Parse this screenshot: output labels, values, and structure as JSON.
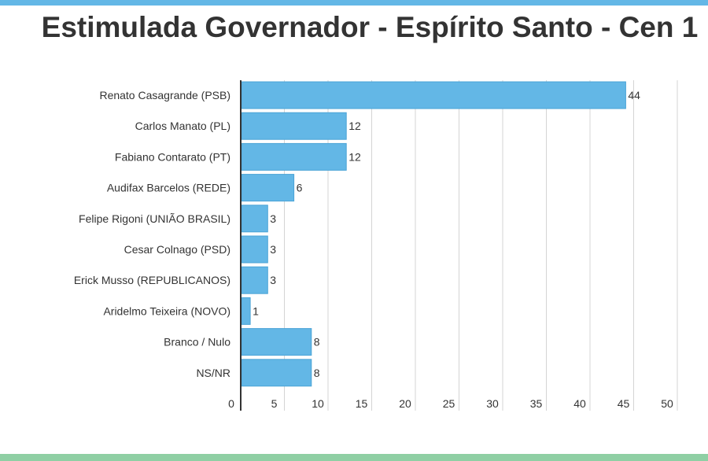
{
  "title": "Estimulada Governador - Espírito Santo - Cen 1",
  "colors": {
    "bar": "#63b7e6",
    "bar_edge": "#4aa3d6",
    "top_strip": "#63b7e6",
    "bottom_strip": "#8fcfa4",
    "grid": "#d4d4d4",
    "axis": "#333333",
    "text": "#333333"
  },
  "chart_data": {
    "type": "bar",
    "orientation": "horizontal",
    "title": "Estimulada Governador - Espírito Santo - Cen 1",
    "categories": [
      "Renato Casagrande (PSB)",
      "Carlos Manato (PL)",
      "Fabiano Contarato (PT)",
      "Audifax Barcelos (REDE)",
      "Felipe Rigoni (UNIÃO BRASIL)",
      "Cesar Colnago (PSD)",
      "Erick Musso (REPUBLICANOS)",
      "Aridelmo Teixeira (NOVO)",
      "Branco / Nulo",
      "NS/NR"
    ],
    "values": [
      44,
      12,
      12,
      6,
      3,
      3,
      3,
      1,
      8,
      8
    ],
    "data_labels": [
      "44",
      "12",
      "12",
      "6",
      "3",
      "3",
      "3",
      "1",
      "8",
      "8"
    ],
    "xlim": [
      0,
      50
    ],
    "xticks": [
      "0",
      "5",
      "10",
      "15",
      "20",
      "25",
      "30",
      "35",
      "40",
      "45",
      "50"
    ],
    "grid": true,
    "xlabel": "",
    "ylabel": ""
  }
}
